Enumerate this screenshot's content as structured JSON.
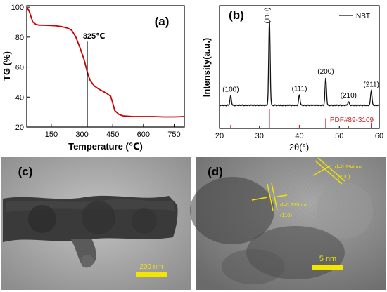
{
  "chart_data": [
    {
      "panel": "(a)",
      "type": "line",
      "xlabel": "Temperature (℃)",
      "ylabel": "TG (%)",
      "xlim": [
        30,
        800
      ],
      "ylim": [
        20,
        101
      ],
      "xticks": [
        150,
        300,
        450,
        600,
        750
      ],
      "yticks": [
        20,
        40,
        60,
        80,
        100
      ],
      "color": "#cc0000",
      "x": [
        30,
        40,
        50,
        60,
        75,
        90,
        110,
        140,
        170,
        200,
        230,
        250,
        270,
        290,
        310,
        325,
        340,
        360,
        380,
        400,
        420,
        440,
        450,
        460,
        480,
        500,
        550,
        600,
        650,
        700,
        750,
        800
      ],
      "y": [
        99.5,
        98,
        94,
        90,
        88.5,
        88,
        88,
        87.8,
        87.6,
        87,
        86,
        84.5,
        80,
        73,
        65,
        57,
        51,
        47.5,
        45.5,
        44,
        42.5,
        40.5,
        36,
        31,
        28.5,
        27.5,
        27,
        27,
        27,
        26.8,
        26.8,
        27
      ],
      "annotation": {
        "text": "325℃",
        "x": 325
      }
    },
    {
      "panel": "(b)",
      "type": "line",
      "xlabel": "2θ(°)",
      "ylabel": "Intensity(a.u.)",
      "xlim": [
        20,
        60
      ],
      "xticks": [
        20,
        30,
        40,
        50,
        60
      ],
      "legend": "NBT",
      "legend_position": "top-right",
      "reference_label": "PDF#89-3109",
      "reference_color": "#cc2222",
      "peaks": [
        {
          "pos": 22.8,
          "height": 11,
          "label": "(100)"
        },
        {
          "pos": 32.5,
          "height": 100,
          "label": "(110)"
        },
        {
          "pos": 40.0,
          "height": 12,
          "label": "(111)"
        },
        {
          "pos": 46.6,
          "height": 32,
          "label": "(200)"
        },
        {
          "pos": 52.3,
          "height": 4,
          "label": "(210)"
        },
        {
          "pos": 58.0,
          "height": 17,
          "label": "(211)"
        }
      ],
      "reference_lines": [
        {
          "pos": 22.8,
          "height": 18
        },
        {
          "pos": 32.5,
          "height": 100
        },
        {
          "pos": 40.0,
          "height": 18
        },
        {
          "pos": 46.6,
          "height": 52
        },
        {
          "pos": 52.3,
          "height": 10
        },
        {
          "pos": 58.0,
          "height": 30
        }
      ]
    }
  ],
  "panels": {
    "c": {
      "label": "(c)",
      "scale": "200 nm"
    },
    "d": {
      "label": "(d)",
      "scale": "5 nm",
      "fringes": [
        {
          "d": "d=0.194nm",
          "plane": "(200)"
        },
        {
          "d": "d=0.275nm",
          "plane": "(110)"
        }
      ]
    }
  },
  "colors": {
    "tg_curve": "#cc0000",
    "xrd_curve": "#111111",
    "scale_bar": "#f2e600"
  }
}
